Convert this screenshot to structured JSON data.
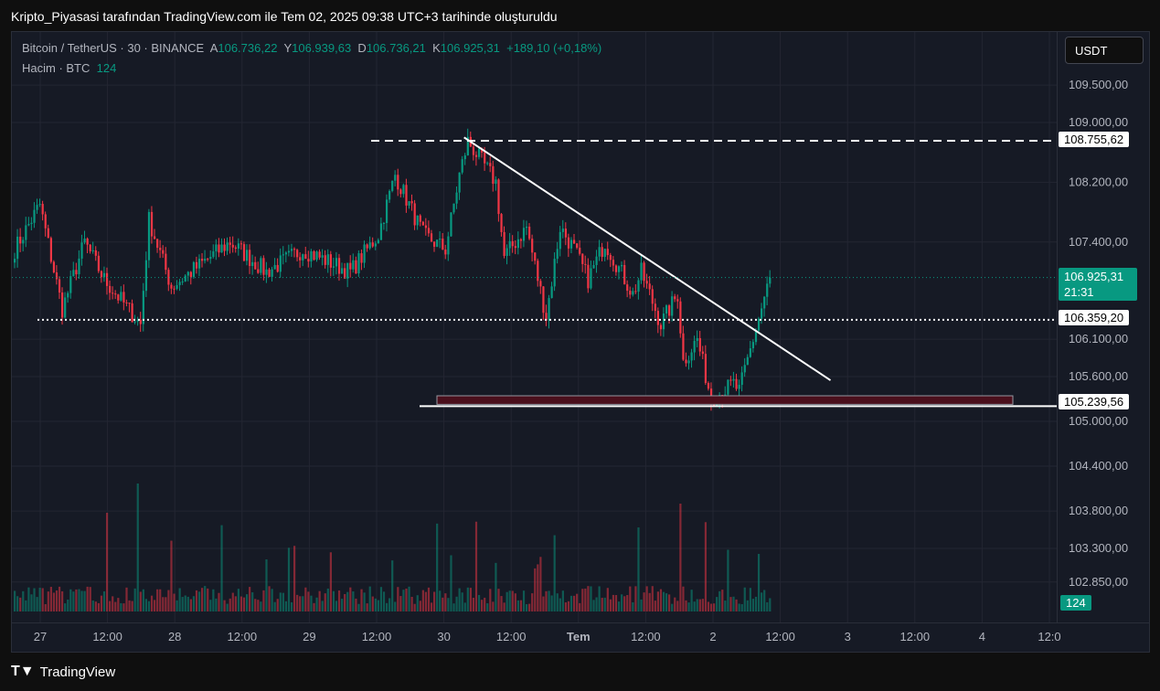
{
  "title": "Kripto_Piyasasi tarafından TradingView.com ile Tem 02, 2025 09:38 UTC+3 tarihinde oluşturuldu",
  "legend": {
    "symbol": "Bitcoin / TetherUS · 30 · BINANCE",
    "o_label": "A",
    "o": "106.736,22",
    "h_label": "Y",
    "h": "106.939,63",
    "l_label": "D",
    "l": "106.736,21",
    "c_label": "K",
    "c": "106.925,31",
    "change": "+189,10 (+0,18%)",
    "volume_label": "Hacim · BTC",
    "volume": "124"
  },
  "currency_button": "USDT",
  "tags": {
    "resistance": "108.755,62",
    "last_price": "106.925,31",
    "countdown": "21:31",
    "dotted_level": "106.359,20",
    "support": "105.239,56",
    "volume": "124"
  },
  "footer": {
    "brand": "TradingView"
  },
  "colors": {
    "up": "#089981",
    "down": "#f23645",
    "bg": "#161a25"
  },
  "chart_data": {
    "type": "candlestick",
    "price_ticks": [
      "109.500,00",
      "109.000,00",
      "108.200,00",
      "107.400,00",
      "106.100,00",
      "105.600,00",
      "105.000,00",
      "104.400,00",
      "103.800,00",
      "103.300,00",
      "102.850,00"
    ],
    "price_tick_values": [
      109500,
      109000,
      108200,
      107400,
      106100,
      105600,
      105000,
      104400,
      103800,
      103300,
      102850
    ],
    "time_ticks": [
      "27",
      "12:00",
      "28",
      "12:00",
      "29",
      "12:00",
      "30",
      "12:00",
      "Tem",
      "12:00",
      "2",
      "12:00",
      "3",
      "12:00",
      "4",
      "12:0"
    ],
    "interval_minutes": 30,
    "path_keypoints": [
      [
        0,
        107300
      ],
      [
        9,
        107900
      ],
      [
        17,
        106500
      ],
      [
        25,
        107400
      ],
      [
        32,
        106900
      ],
      [
        45,
        106300
      ],
      [
        48,
        107700
      ],
      [
        56,
        106800
      ],
      [
        77,
        107400
      ],
      [
        90,
        107000
      ],
      [
        103,
        107300
      ],
      [
        120,
        107000
      ],
      [
        130,
        107500
      ],
      [
        136,
        108300
      ],
      [
        146,
        107500
      ],
      [
        154,
        107300
      ],
      [
        159,
        108300
      ],
      [
        162,
        108750
      ],
      [
        172,
        108200
      ],
      [
        175,
        107200
      ],
      [
        183,
        107600
      ],
      [
        190,
        106400
      ],
      [
        195,
        107600
      ],
      [
        200,
        107300
      ],
      [
        205,
        106900
      ],
      [
        211,
        107400
      ],
      [
        221,
        106700
      ],
      [
        224,
        107000
      ],
      [
        231,
        106300
      ],
      [
        237,
        106700
      ],
      [
        239,
        105800
      ],
      [
        244,
        106100
      ],
      [
        249,
        105300
      ],
      [
        257,
        105500
      ],
      [
        259,
        105400
      ],
      [
        264,
        106100
      ],
      [
        270,
        106925
      ]
    ],
    "levels": {
      "resistance": 108755.62,
      "dotted": 106359.2,
      "support": 105239.56
    },
    "trendline": [
      [
        161,
        108800
      ],
      [
        292,
        105550
      ]
    ],
    "support_zone": [
      105240,
      105330
    ]
  }
}
